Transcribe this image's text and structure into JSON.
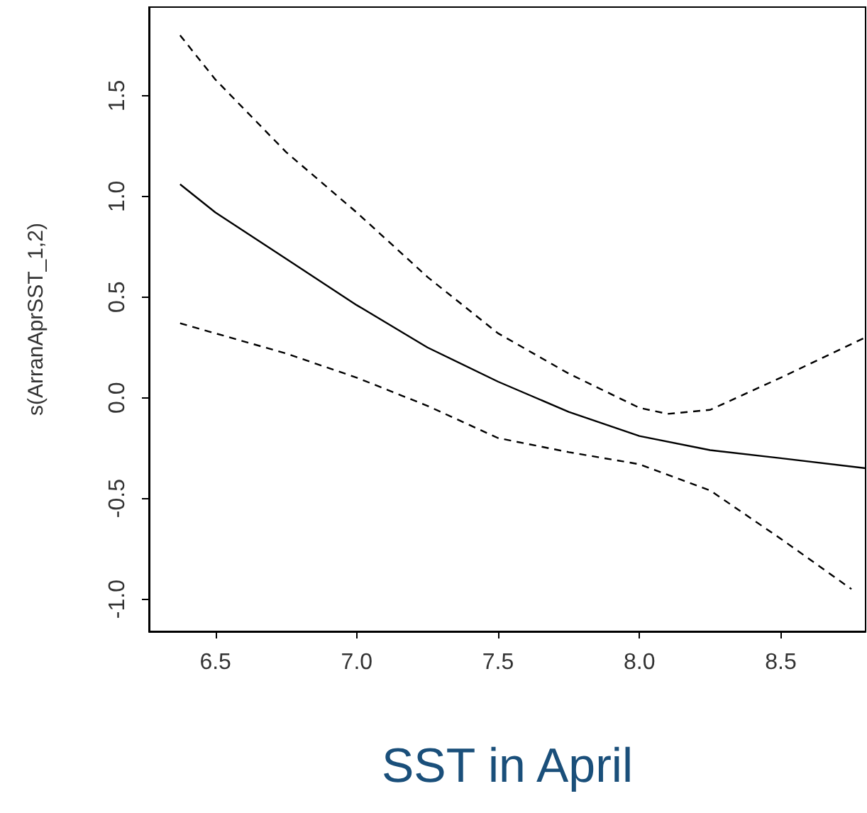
{
  "chart_data": {
    "type": "line",
    "xlabel": "SST in April",
    "ylabel": "s(ArranAprSST_1,2)",
    "xlim": [
      6.265,
      8.8
    ],
    "xticks": [
      6.5,
      {
        "value": 7,
        "label": "7.0"
      },
      7.5,
      {
        "value": 8,
        "label": "8.0"
      },
      8.5
    ],
    "ylim": [
      -1.16,
      1.94
    ],
    "yticks": [
      {
        "value": -1,
        "label": "-1.0"
      },
      -0.5,
      {
        "value": 0,
        "label": "0.0"
      },
      0.5,
      {
        "value": 1,
        "label": "1.0"
      },
      1.5
    ],
    "grid": false,
    "marker": "none",
    "series": [
      {
        "color": "#000000",
        "line_style": "solid",
        "x": [
          6.375,
          6.5,
          6.75,
          7.0,
          7.25,
          7.5,
          7.75,
          8.0,
          8.25,
          8.5,
          8.8
        ],
        "values": [
          1.06,
          0.92,
          0.69,
          0.46,
          0.25,
          0.08,
          -0.07,
          -0.19,
          -0.26,
          -0.3,
          -0.35
        ]
      },
      {
        "color": "#000000",
        "line_style": "dashed",
        "x": [
          6.375,
          6.5,
          6.75,
          7.0,
          7.25,
          7.5,
          7.75,
          8.0,
          8.1,
          8.25,
          8.5,
          8.8
        ],
        "values": [
          1.8,
          1.58,
          1.22,
          0.92,
          0.6,
          0.32,
          0.12,
          -0.05,
          -0.08,
          -0.06,
          0.1,
          0.3
        ]
      },
      {
        "color": "#000000",
        "line_style": "dashed",
        "x": [
          6.375,
          6.5,
          6.75,
          7.0,
          7.25,
          7.5,
          7.75,
          8.0,
          8.25,
          8.5,
          8.75
        ],
        "values": [
          0.37,
          0.32,
          0.22,
          0.1,
          -0.04,
          -0.2,
          -0.27,
          -0.33,
          -0.46,
          -0.7,
          -0.95
        ]
      }
    ]
  }
}
